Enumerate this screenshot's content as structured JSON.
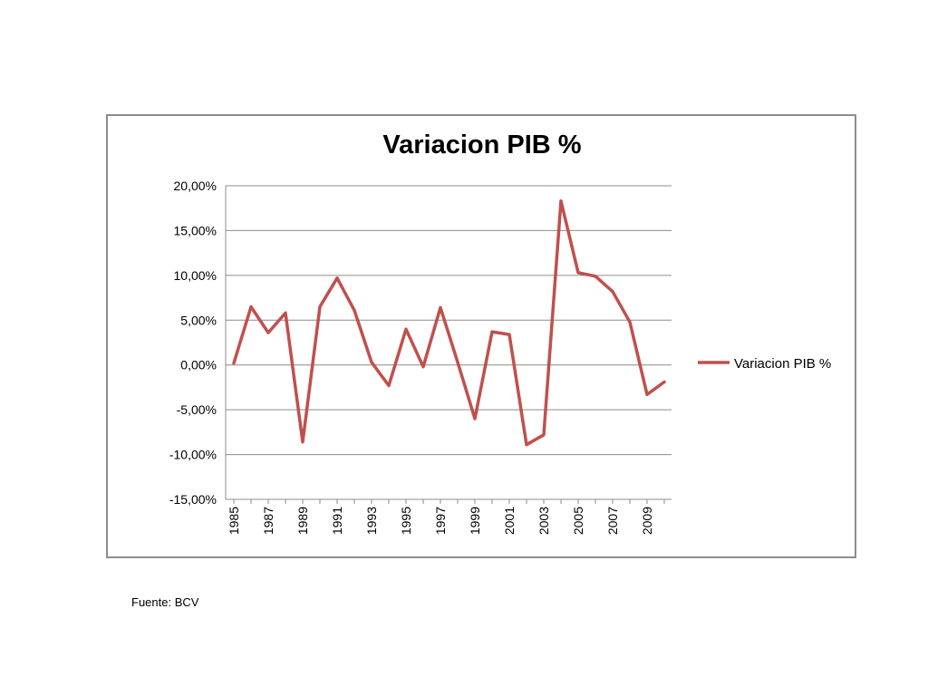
{
  "chart_data": {
    "type": "line",
    "title": "Variacion PIB %",
    "xlabel": "",
    "ylabel": "",
    "ylim": [
      -15,
      20
    ],
    "yticks": [
      "20,00%",
      "15,00%",
      "10,00%",
      "5,00%",
      "0,00%",
      "-5,00%",
      "-10,00%",
      "-15,00%"
    ],
    "x": [
      1985,
      1986,
      1987,
      1988,
      1989,
      1990,
      1991,
      1992,
      1993,
      1994,
      1995,
      1996,
      1997,
      1998,
      1999,
      2000,
      2001,
      2002,
      2003,
      2004,
      2005,
      2006,
      2007,
      2008,
      2009,
      2010
    ],
    "xtick_labels": [
      "1985",
      "1987",
      "1989",
      "1991",
      "1993",
      "1995",
      "1997",
      "1999",
      "2001",
      "2003",
      "2005",
      "2007",
      "2009"
    ],
    "grid": true,
    "legend_position": "right",
    "series": [
      {
        "name": "Variacion PIB %",
        "color": "#c0504d",
        "values": [
          0.2,
          6.5,
          3.6,
          5.8,
          -8.6,
          6.5,
          9.7,
          6.1,
          0.3,
          -2.3,
          4.0,
          -0.2,
          6.4,
          0.3,
          -6.0,
          3.7,
          3.4,
          -8.9,
          -7.8,
          18.3,
          10.3,
          9.9,
          8.2,
          4.8,
          -3.3,
          -1.9
        ]
      }
    ]
  },
  "footer": {
    "source": "Fuente: BCV"
  }
}
